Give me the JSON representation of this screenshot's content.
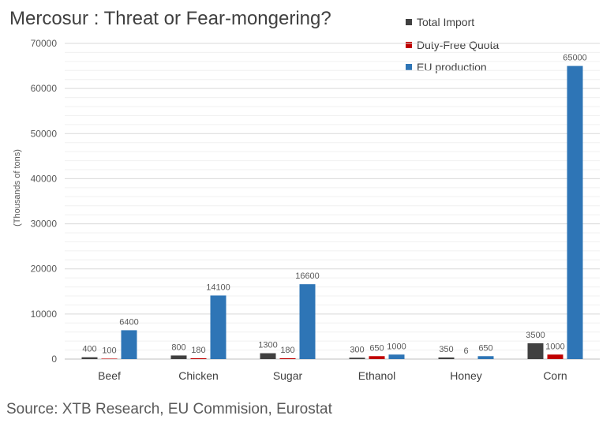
{
  "title": "Mercosur : Threat or Fear-mongering?",
  "source": "Source: XTB Research, EU Commision, Eurostat",
  "chart_data": {
    "type": "bar",
    "title": "Mercosur : Threat or Fear-mongering?",
    "xlabel": "",
    "ylabel": "(Thousands of tons)",
    "categories": [
      "Beef",
      "Chicken",
      "Sugar",
      "Ethanol",
      "Honey",
      "Corn"
    ],
    "series": [
      {
        "name": "Total Import",
        "color": "#404040",
        "values": [
          400,
          800,
          1300,
          300,
          350,
          3500
        ]
      },
      {
        "name": "Duty-Free Quota",
        "color": "#c00000",
        "values": [
          100,
          180,
          180,
          650,
          6,
          1000
        ]
      },
      {
        "name": "EU production",
        "color": "#2e75b6",
        "values": [
          6400,
          14100,
          16600,
          1000,
          650,
          65000
        ]
      }
    ],
    "ylim": [
      0,
      70000
    ],
    "yticks": [
      0,
      10000,
      20000,
      30000,
      40000,
      50000,
      60000,
      70000
    ],
    "grid": true,
    "legend": "top-right"
  }
}
